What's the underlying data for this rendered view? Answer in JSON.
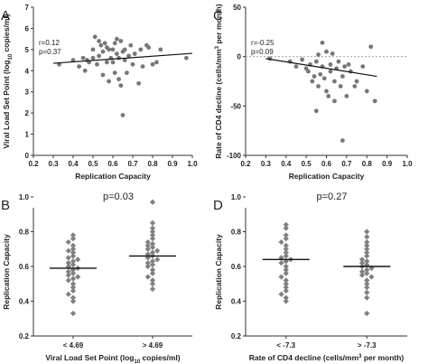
{
  "chart_data": [
    {
      "panel_label": "A",
      "type": "scatter",
      "xlabel": "Replication Capacity",
      "ylabel_main": "Viral Load Set Point (log",
      "ylabel_sub": "10",
      "ylabel_end": " copies/ml)",
      "xlim": [
        0.2,
        1.0
      ],
      "ylim": [
        0,
        7
      ],
      "xticks": [
        "0.2",
        "0.3",
        "0.4",
        "0.5",
        "0.6",
        "0.7",
        "0.8",
        "0.9",
        "1.0"
      ],
      "yticks": [
        "0",
        "1",
        "2",
        "3",
        "4",
        "5",
        "6",
        "7"
      ],
      "stats": [
        "r=0.12",
        "p=0.37"
      ],
      "regression": {
        "x": [
          0.3,
          1.0
        ],
        "y": [
          4.35,
          4.82
        ]
      },
      "points": {
        "x": [
          0.33,
          0.4,
          0.43,
          0.45,
          0.46,
          0.47,
          0.48,
          0.5,
          0.5,
          0.51,
          0.52,
          0.53,
          0.53,
          0.54,
          0.55,
          0.55,
          0.56,
          0.57,
          0.57,
          0.58,
          0.58,
          0.59,
          0.6,
          0.6,
          0.61,
          0.61,
          0.62,
          0.62,
          0.63,
          0.63,
          0.64,
          0.64,
          0.65,
          0.65,
          0.66,
          0.66,
          0.67,
          0.68,
          0.69,
          0.7,
          0.71,
          0.73,
          0.74,
          0.75,
          0.77,
          0.78,
          0.8,
          0.82,
          0.84,
          0.97
        ],
        "y": [
          4.3,
          4.5,
          4.2,
          4.6,
          4.0,
          4.5,
          4.4,
          5.0,
          4.6,
          5.6,
          4.3,
          5.4,
          4.7,
          5.2,
          4.9,
          3.8,
          5.3,
          5.1,
          4.4,
          5.0,
          3.5,
          4.6,
          5.0,
          4.4,
          5.3,
          3.9,
          5.5,
          4.8,
          4.6,
          3.6,
          5.4,
          3.3,
          4.9,
          1.9,
          5.0,
          4.5,
          3.9,
          4.7,
          5.2,
          4.3,
          4.8,
          3.4,
          5.0,
          4.2,
          5.2,
          5.1,
          4.3,
          4.4,
          5.0,
          4.6
        ]
      }
    },
    {
      "panel_label": "C",
      "type": "scatter",
      "xlabel": "Replication Capacity",
      "ylabel_main": "Rate of CD4 decline (cells/mm",
      "ylabel_sup": "3",
      "ylabel_end": " per month)",
      "xlim": [
        0.2,
        1.0
      ],
      "ylim": [
        -100,
        50
      ],
      "xticks": [
        "0.2",
        "0.3",
        "0.4",
        "0.5",
        "0.6",
        "0.7",
        "0.8",
        "0.9",
        "1.0"
      ],
      "yticks": [
        "50",
        "0",
        "-50",
        "-100"
      ],
      "stats": [
        "r=-0.25",
        "p=0.09"
      ],
      "regression": {
        "x": [
          0.3,
          0.85
        ],
        "y": [
          -2,
          -20
        ]
      },
      "reference_line_y": 0,
      "points": {
        "x": [
          0.32,
          0.42,
          0.45,
          0.48,
          0.5,
          0.51,
          0.52,
          0.53,
          0.54,
          0.55,
          0.55,
          0.56,
          0.56,
          0.57,
          0.58,
          0.58,
          0.59,
          0.6,
          0.6,
          0.61,
          0.62,
          0.62,
          0.63,
          0.64,
          0.64,
          0.65,
          0.66,
          0.67,
          0.68,
          0.68,
          0.69,
          0.7,
          0.71,
          0.72,
          0.74,
          0.75,
          0.78,
          0.8,
          0.82,
          0.84
        ],
        "y": [
          -2,
          -5,
          -10,
          -3,
          -12,
          -15,
          -8,
          -25,
          -20,
          -5,
          -55,
          2,
          -30,
          -18,
          14,
          -10,
          -22,
          5,
          -35,
          -40,
          -8,
          -15,
          3,
          -25,
          -45,
          -12,
          -5,
          -30,
          -85,
          -20,
          -10,
          -40,
          -8,
          -15,
          -30,
          -25,
          -10,
          -35,
          10,
          -45
        ]
      }
    },
    {
      "panel_label": "B",
      "type": "scatter",
      "title": "p=0.03",
      "xlabel_main": "Viral Load Set Point (log",
      "xlabel_sub": "10",
      "xlabel_end": " copies/ml)",
      "ylabel": "Replication Capacity",
      "ylim": [
        0.2,
        1.0
      ],
      "yticks": [
        "0.2",
        "0.4",
        "0.6",
        "0.8",
        "1.0"
      ],
      "categories": [
        "< 4.69",
        "> 4.69"
      ],
      "medians": [
        0.59,
        0.66
      ],
      "groups": [
        [
          0.78,
          0.76,
          0.74,
          0.72,
          0.7,
          0.69,
          0.68,
          0.66,
          0.65,
          0.64,
          0.63,
          0.62,
          0.61,
          0.6,
          0.59,
          0.58,
          0.57,
          0.56,
          0.55,
          0.54,
          0.53,
          0.52,
          0.5,
          0.48,
          0.46,
          0.44,
          0.42,
          0.4,
          0.33
        ],
        [
          0.97,
          0.85,
          0.82,
          0.8,
          0.78,
          0.76,
          0.74,
          0.73,
          0.72,
          0.71,
          0.7,
          0.69,
          0.68,
          0.67,
          0.66,
          0.65,
          0.64,
          0.63,
          0.62,
          0.61,
          0.6,
          0.58,
          0.56,
          0.54,
          0.52,
          0.5,
          0.47
        ]
      ]
    },
    {
      "panel_label": "D",
      "type": "scatter",
      "title": "p=0.27",
      "xlabel_main": "Rate of CD4 decline (cells/mm",
      "xlabel_sup": "3",
      "xlabel_end": " per month)",
      "ylabel": "Replication Capacity",
      "ylim": [
        0.2,
        1.0
      ],
      "yticks": [
        "0.2",
        "0.4",
        "0.6",
        "0.8",
        "1.0"
      ],
      "categories": [
        "< -7.3",
        "> -7.3"
      ],
      "medians": [
        0.64,
        0.6
      ],
      "groups": [
        [
          0.84,
          0.82,
          0.78,
          0.76,
          0.74,
          0.72,
          0.7,
          0.68,
          0.66,
          0.65,
          0.64,
          0.63,
          0.62,
          0.6,
          0.58,
          0.56,
          0.54,
          0.52,
          0.5,
          0.48,
          0.46,
          0.44,
          0.42,
          0.4
        ],
        [
          0.8,
          0.77,
          0.74,
          0.72,
          0.7,
          0.68,
          0.66,
          0.64,
          0.63,
          0.62,
          0.61,
          0.6,
          0.59,
          0.58,
          0.57,
          0.56,
          0.55,
          0.54,
          0.52,
          0.5,
          0.48,
          0.45,
          0.42,
          0.33
        ]
      ]
    }
  ]
}
